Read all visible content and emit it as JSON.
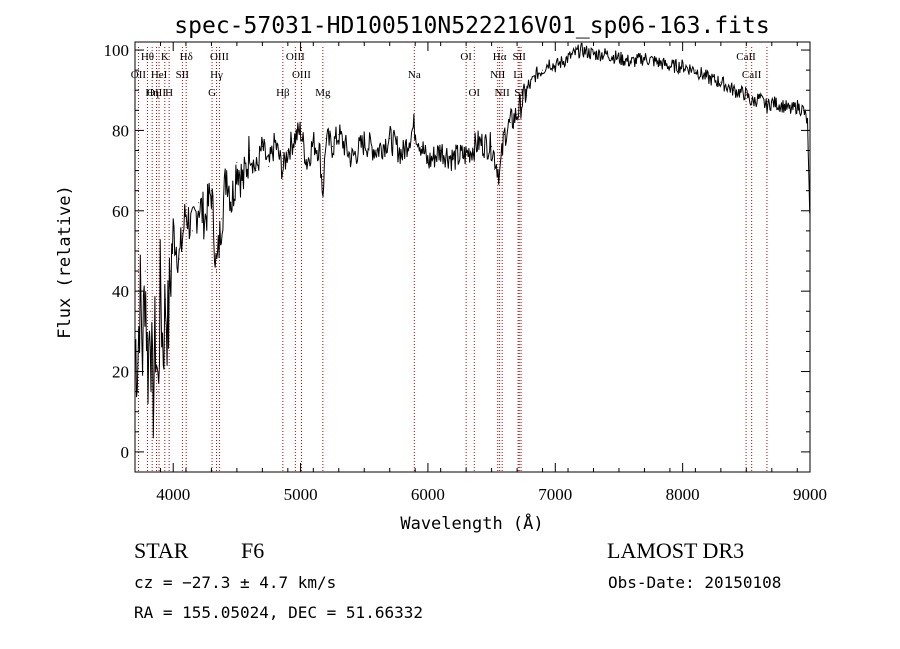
{
  "chart_data": {
    "type": "line",
    "title": "spec-57031-HD100510N522216V01_sp06-163.fits",
    "xlabel": "Wavelength (Å)",
    "ylabel": "Flux (relative)",
    "xlim": [
      3700,
      9000
    ],
    "ylim": [
      -5,
      102
    ],
    "xticks": [
      4000,
      5000,
      6000,
      7000,
      8000,
      9000
    ],
    "yticks": [
      0,
      20,
      40,
      60,
      80,
      100
    ],
    "series": [
      {
        "name": "flux",
        "x": [
          3700,
          3720,
          3740,
          3760,
          3780,
          3800,
          3820,
          3840,
          3860,
          3880,
          3900,
          3920,
          3940,
          3960,
          3980,
          4000,
          4050,
          4100,
          4150,
          4200,
          4250,
          4300,
          4340,
          4380,
          4420,
          4460,
          4500,
          4550,
          4600,
          4650,
          4700,
          4750,
          4800,
          4861,
          4900,
          4950,
          5000,
          5050,
          5100,
          5150,
          5175,
          5200,
          5250,
          5300,
          5400,
          5500,
          5600,
          5700,
          5800,
          5890,
          5950,
          6000,
          6100,
          6200,
          6300,
          6400,
          6500,
          6563,
          6600,
          6650,
          6700,
          6750,
          6800,
          6850,
          6900,
          6950,
          7000,
          7100,
          7200,
          7300,
          7400,
          7500,
          7600,
          7700,
          7800,
          7900,
          8000,
          8100,
          8200,
          8300,
          8400,
          8500,
          8542,
          8600,
          8662,
          8700,
          8800,
          8850,
          8900,
          8950,
          8980,
          9000
        ],
        "values": [
          28,
          22,
          40,
          25,
          45,
          20,
          35,
          10,
          30,
          15,
          42,
          25,
          38,
          30,
          45,
          55,
          48,
          60,
          55,
          62,
          58,
          65,
          45,
          58,
          70,
          62,
          72,
          67,
          75,
          70,
          76,
          71,
          77,
          70,
          75,
          78,
          80,
          72,
          77,
          75,
          64,
          78,
          76,
          79,
          73,
          77,
          75,
          78,
          74,
          81,
          76,
          72,
          75,
          73,
          74,
          77,
          76,
          69,
          79,
          82,
          84,
          88,
          91,
          94,
          95,
          97,
          96,
          98,
          100,
          99,
          99,
          98,
          97,
          98,
          97,
          96,
          96,
          95,
          93,
          92,
          90,
          89,
          87,
          88,
          86,
          87,
          86,
          85,
          86,
          85,
          82,
          55
        ]
      }
    ],
    "lines": [
      {
        "label": "Hθ",
        "x": 3798
      },
      {
        "label": "K",
        "x": 3934
      },
      {
        "label": "Hδ",
        "x": 4102
      },
      {
        "label": "OIII",
        "x": 4363
      },
      {
        "label": "OIII",
        "x": 4959
      },
      {
        "label": "OI",
        "x": 6300
      },
      {
        "label": "Hα",
        "x": 6563
      },
      {
        "label": "SII",
        "x": 6717
      },
      {
        "label": "CaII",
        "x": 8498
      },
      {
        "label": "OII",
        "x": 3727
      },
      {
        "label": "HeI",
        "x": 3889
      },
      {
        "label": "SII",
        "x": 4072
      },
      {
        "label": "Hγ",
        "x": 4340
      },
      {
        "label": "OIII",
        "x": 5007
      },
      {
        "label": "Na",
        "x": 5893
      },
      {
        "label": "NII",
        "x": 6548
      },
      {
        "label": "Li",
        "x": 6708
      },
      {
        "label": "CaII",
        "x": 8542
      },
      {
        "label": "OIII",
        "x": 3869
      },
      {
        "label": "Hη",
        "x": 3835
      },
      {
        "label": "H",
        "x": 3968
      },
      {
        "label": "G",
        "x": 4305
      },
      {
        "label": "Hβ",
        "x": 4861
      },
      {
        "label": "Mg",
        "x": 5175
      },
      {
        "label": "OI",
        "x": 6364
      },
      {
        "label": "NII",
        "x": 6583
      },
      {
        "label": "SII",
        "x": 6731
      },
      {
        "label": "CaII",
        "x": 8662
      }
    ]
  },
  "info": {
    "object_type": "STAR",
    "subclass": "F6",
    "survey": "LAMOST DR3",
    "redshift": "cz = −27.3 ± 4.7 km/s",
    "obs_date": "Obs-Date: 20150108",
    "coords": "RA = 155.05024, DEC =  51.66332"
  }
}
